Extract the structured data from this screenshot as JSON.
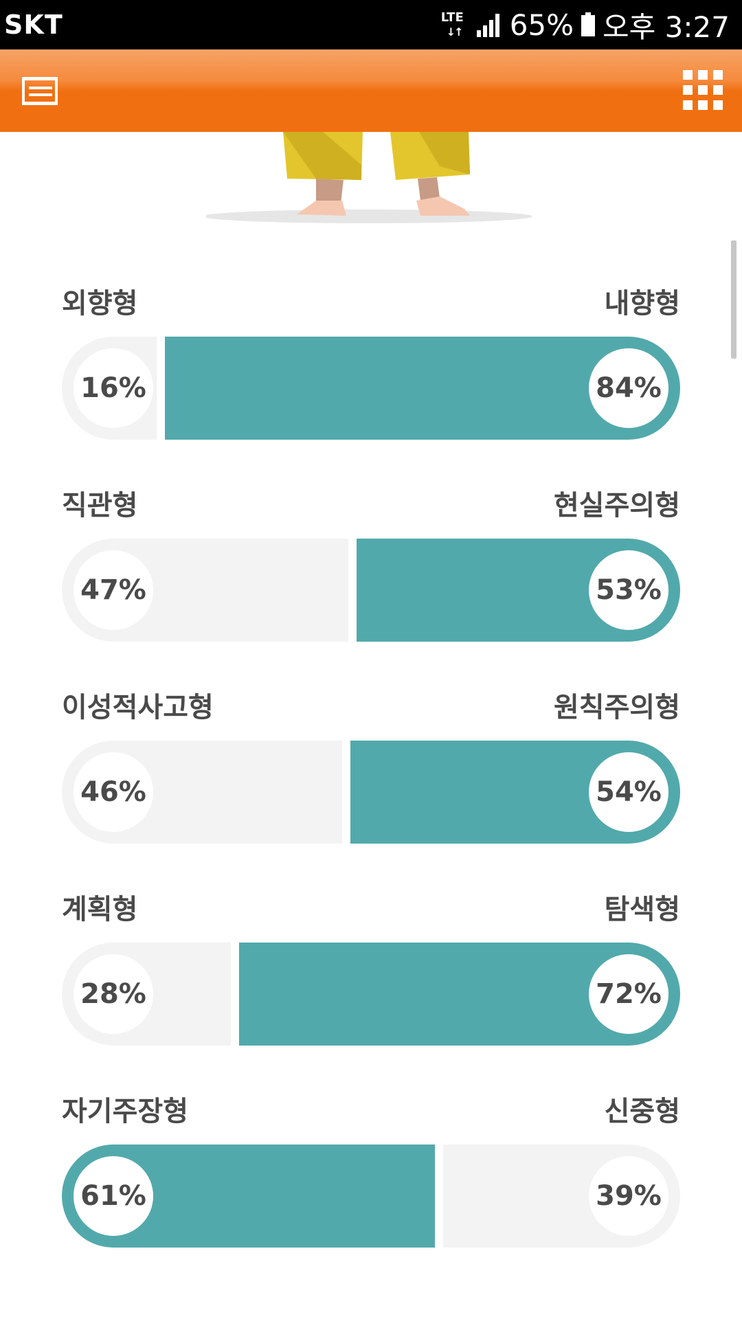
{
  "status_bar": {
    "carrier": "SKT",
    "network": "LTE",
    "battery_percent": "65%",
    "time": "오후 3:27"
  },
  "app_bar": {
    "color": "#f07011",
    "left_icon": "menu-icon",
    "right_icon": "grid-apps-icon"
  },
  "colors": {
    "dominant_fill": "#52a9ab",
    "track": "#f3f3f3",
    "text": "#4a4a4a"
  },
  "traits": [
    {
      "left_label": "외향형",
      "right_label": "내향형",
      "left_percent": 16,
      "right_percent": 84,
      "left_text": "16%",
      "right_text": "84%",
      "dominant": "right"
    },
    {
      "left_label": "직관형",
      "right_label": "현실주의형",
      "left_percent": 47,
      "right_percent": 53,
      "left_text": "47%",
      "right_text": "53%",
      "dominant": "right"
    },
    {
      "left_label": "이성적사고형",
      "right_label": "원칙주의형",
      "left_percent": 46,
      "right_percent": 54,
      "left_text": "46%",
      "right_text": "54%",
      "dominant": "right"
    },
    {
      "left_label": "계획형",
      "right_label": "탐색형",
      "left_percent": 28,
      "right_percent": 72,
      "left_text": "28%",
      "right_text": "72%",
      "dominant": "right"
    },
    {
      "left_label": "자기주장형",
      "right_label": "신중형",
      "left_percent": 61,
      "right_percent": 39,
      "left_text": "61%",
      "right_text": "39%",
      "dominant": "left"
    }
  ]
}
